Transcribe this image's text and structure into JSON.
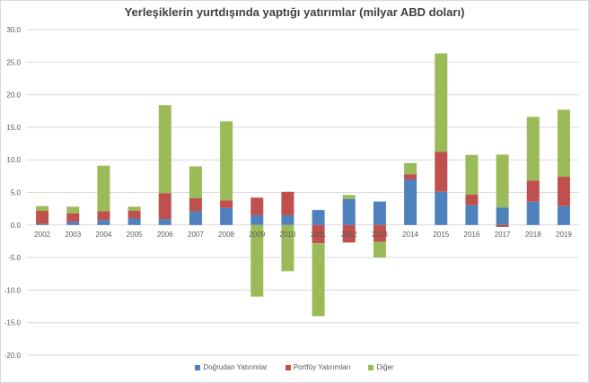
{
  "chart_data": {
    "type": "bar",
    "stacked": true,
    "title": "Yerleşiklerin yurtdışında yaptığı yatırımlar (milyar ABD doları)",
    "xlabel": "",
    "ylabel": "",
    "ylim": [
      -20,
      30
    ],
    "yticks": [
      "30.0",
      "25.0",
      "20.0",
      "15.0",
      "10.0",
      "5.0",
      "0.0",
      "-5.0",
      "-10.0",
      "-15.0",
      "-20.0"
    ],
    "grid": true,
    "legend": "bottom",
    "categories": [
      "2002",
      "2003",
      "2004",
      "2005",
      "2006",
      "2007",
      "2008",
      "2009",
      "2010",
      "2011",
      "2012",
      "2013",
      "2014",
      "2015",
      "2016",
      "2017",
      "2018",
      "2019"
    ],
    "series": [
      {
        "name": "Doğrudan Yatırımlar",
        "color": "#4f81bd",
        "values": [
          0.2,
          0.5,
          0.75,
          1.0,
          0.9,
          2.1,
          2.6,
          1.5,
          1.5,
          2.3,
          4.0,
          3.6,
          7.0,
          5.1,
          3.05,
          2.7,
          3.6,
          2.9
        ]
      },
      {
        "name": "Portföy Yatırımları",
        "color": "#c0504d",
        "values": [
          2.0,
          1.3,
          1.35,
          1.2,
          4.0,
          2.0,
          1.2,
          2.7,
          3.6,
          -2.8,
          -2.7,
          -2.6,
          0.8,
          6.15,
          1.6,
          -0.3,
          3.2,
          4.5
        ]
      },
      {
        "name": "Diğer",
        "color": "#9bbb59",
        "values": [
          0.7,
          1.0,
          7.0,
          0.6,
          13.5,
          4.9,
          12.1,
          -11.0,
          -7.1,
          -11.2,
          0.6,
          -2.4,
          1.7,
          15.1,
          6.1,
          8.1,
          9.8,
          10.3
        ]
      }
    ]
  }
}
